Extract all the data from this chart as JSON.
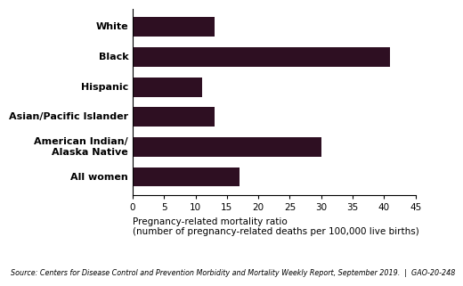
{
  "categories": [
    "White",
    "Black",
    "Hispanic",
    "Asian/Pacific Islander",
    "American Indian/\nAlaska Native",
    "All women"
  ],
  "values": [
    13.0,
    41.0,
    11.0,
    13.0,
    30.0,
    17.0
  ],
  "bar_color": "#2e0f22",
  "xlim": [
    0,
    45
  ],
  "xticks": [
    0,
    5,
    10,
    15,
    20,
    25,
    30,
    35,
    40,
    45
  ],
  "xlabel_line1": "Pregnancy-related mortality ratio",
  "xlabel_line2": "(number of pregnancy-related deaths per 100,000 live births)",
  "source_text": "Source: Centers for Disease Control and Prevention Morbidity and Mortality Weekly Report, September 2019.  |  GAO-20-248",
  "background_color": "#ffffff",
  "bar_height": 0.65,
  "label_fontsize": 8.0,
  "tick_fontsize": 7.5,
  "xlabel_fontsize": 7.5,
  "source_fontsize": 5.8
}
